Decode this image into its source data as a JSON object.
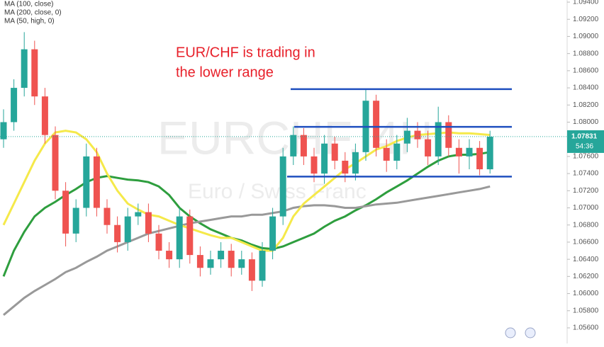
{
  "chart_data": {
    "type": "candlestick",
    "symbol_watermark": "EURCHF, 4H",
    "name_watermark": "Euro / Swiss Franc",
    "annotation": [
      "EUR/CHF is trading in",
      "the lower range"
    ],
    "up_color": "#26a69a",
    "down_color": "#ef5350",
    "open": [
      1.078,
      1.08,
      1.084,
      1.0885,
      1.083,
      1.0785,
      1.072,
      1.067,
      1.07,
      1.076,
      1.07,
      1.068,
      1.066,
      1.069,
      1.0695,
      1.067,
      1.065,
      1.064,
      1.069,
      1.0645,
      1.063,
      1.064,
      1.065,
      1.063,
      1.064,
      1.0615,
      1.065,
      1.069,
      1.076,
      1.0785,
      1.076,
      1.074,
      1.0775,
      1.0755,
      1.074,
      1.0765,
      1.0825,
      1.077,
      1.0755,
      1.0775,
      1.079,
      1.078,
      1.076,
      1.08,
      1.077,
      1.076,
      1.077,
      1.0745
    ],
    "high": [
      1.0815,
      1.085,
      1.0905,
      1.0895,
      1.084,
      1.0795,
      1.073,
      1.071,
      1.0775,
      1.077,
      1.071,
      1.069,
      1.07,
      1.0705,
      1.0705,
      1.068,
      1.066,
      1.07,
      1.0698,
      1.0655,
      1.065,
      1.066,
      1.0658,
      1.065,
      1.0648,
      1.066,
      1.07,
      1.077,
      1.0795,
      1.0793,
      1.077,
      1.0785,
      1.0783,
      1.0765,
      1.0775,
      1.0838,
      1.0832,
      1.078,
      1.0785,
      1.0805,
      1.08,
      1.079,
      1.0818,
      1.0808,
      1.078,
      1.078,
      1.0778,
      1.079
    ],
    "low": [
      1.077,
      1.079,
      1.083,
      1.082,
      1.0775,
      1.071,
      1.0655,
      1.066,
      1.069,
      1.069,
      1.067,
      1.0648,
      1.065,
      1.068,
      1.066,
      1.064,
      1.063,
      1.063,
      1.0635,
      1.062,
      1.0622,
      1.063,
      1.062,
      1.0622,
      1.0603,
      1.0608,
      1.064,
      1.068,
      1.075,
      1.075,
      1.073,
      1.0728,
      1.0745,
      1.073,
      1.0732,
      1.0755,
      1.076,
      1.0742,
      1.0745,
      1.0765,
      1.077,
      1.075,
      1.075,
      1.076,
      1.074,
      1.0745,
      1.0738,
      1.074
    ],
    "close": [
      1.08,
      1.084,
      1.0885,
      1.083,
      1.0785,
      1.072,
      1.067,
      1.07,
      1.076,
      1.07,
      1.068,
      1.066,
      1.069,
      1.0695,
      1.067,
      1.065,
      1.064,
      1.069,
      1.0645,
      1.063,
      1.064,
      1.065,
      1.063,
      1.064,
      1.0615,
      1.065,
      1.069,
      1.076,
      1.0785,
      1.076,
      1.074,
      1.0775,
      1.0755,
      1.074,
      1.0765,
      1.0825,
      1.077,
      1.0755,
      1.0775,
      1.079,
      1.078,
      1.076,
      1.08,
      1.077,
      1.076,
      1.077,
      1.0745,
      1.0783
    ],
    "series": [
      {
        "name": "MA (100, close)",
        "color": "#2e9e3e",
        "values": [
          1.062,
          1.065,
          1.0672,
          1.069,
          1.07,
          1.0707,
          1.0715,
          1.0722,
          1.073,
          1.0735,
          1.0737,
          1.0735,
          1.0733,
          1.0732,
          1.073,
          1.0725,
          1.0715,
          1.07,
          1.069,
          1.0682,
          1.0675,
          1.067,
          1.0665,
          1.0662,
          1.0657,
          1.0653,
          1.0652,
          1.0655,
          1.066,
          1.0665,
          1.067,
          1.0678,
          1.0685,
          1.069,
          1.0697,
          1.0703,
          1.071,
          1.0718,
          1.0725,
          1.0732,
          1.074,
          1.0748,
          1.0755,
          1.076,
          1.0762,
          1.0762,
          1.0763,
          1.0765
        ]
      },
      {
        "name": "MA (200, close, 0)",
        "color": "#999999",
        "values": [
          1.0575,
          1.0585,
          1.0595,
          1.0603,
          1.061,
          1.0617,
          1.0625,
          1.063,
          1.0637,
          1.0643,
          1.065,
          1.0655,
          1.066,
          1.0665,
          1.067,
          1.0673,
          1.0676,
          1.0679,
          1.0682,
          1.0684,
          1.0686,
          1.0688,
          1.069,
          1.069,
          1.0692,
          1.0692,
          1.0694,
          1.0696,
          1.07,
          1.0702,
          1.0703,
          1.0703,
          1.0702,
          1.07,
          1.07,
          1.0702,
          1.0704,
          1.0705,
          1.0706,
          1.0708,
          1.071,
          1.0712,
          1.0714,
          1.0716,
          1.0718,
          1.072,
          1.0722,
          1.0725
        ]
      },
      {
        "name": "MA (50, high, 0)",
        "color": "#f5e94a",
        "values": [
          1.068,
          1.0705,
          1.073,
          1.0755,
          1.0775,
          1.0788,
          1.079,
          1.0788,
          1.078,
          1.0765,
          1.074,
          1.072,
          1.0705,
          1.0698,
          1.0692,
          1.069,
          1.0685,
          1.068,
          1.0676,
          1.0672,
          1.0668,
          1.0665,
          1.0665,
          1.066,
          1.0655,
          1.065,
          1.065,
          1.0665,
          1.069,
          1.0705,
          1.0715,
          1.0725,
          1.0735,
          1.0745,
          1.0752,
          1.076,
          1.0768,
          1.0772,
          1.0778,
          1.0782,
          1.0785,
          1.0786,
          1.0787,
          1.0788,
          1.0787,
          1.0787,
          1.0786,
          1.0785
        ]
      }
    ],
    "levels": [
      1.08385,
      1.07945,
      1.07365
    ],
    "level_color": "#1f4fbf",
    "last_price": {
      "value": 1.07831,
      "label": "1.07831"
    },
    "countdown": "54:36",
    "ylim": [
      1.05418,
      1.09425
    ],
    "yticks": [
      {
        "value": 1.056,
        "label": "1.05600"
      },
      {
        "value": 1.058,
        "label": "1.05800"
      },
      {
        "value": 1.06,
        "label": "1.06000"
      },
      {
        "value": 1.062,
        "label": "1.06200"
      },
      {
        "value": 1.064,
        "label": "1.06400"
      },
      {
        "value": 1.066,
        "label": "1.06600"
      },
      {
        "value": 1.068,
        "label": "1.06800"
      },
      {
        "value": 1.07,
        "label": "1.07000"
      },
      {
        "value": 1.072,
        "label": "1.07200"
      },
      {
        "value": 1.074,
        "label": "1.07400"
      },
      {
        "value": 1.076,
        "label": "1.07600"
      },
      {
        "value": 1.08,
        "label": "1.08000"
      },
      {
        "value": 1.082,
        "label": "1.08200"
      },
      {
        "value": 1.084,
        "label": "1.08400"
      },
      {
        "value": 1.086,
        "label": "1.08600"
      },
      {
        "value": 1.088,
        "label": "1.08800"
      },
      {
        "value": 1.09,
        "label": "1.09000"
      },
      {
        "value": 1.092,
        "label": "1.09200"
      },
      {
        "value": 1.094,
        "label": "1.09400"
      }
    ]
  }
}
